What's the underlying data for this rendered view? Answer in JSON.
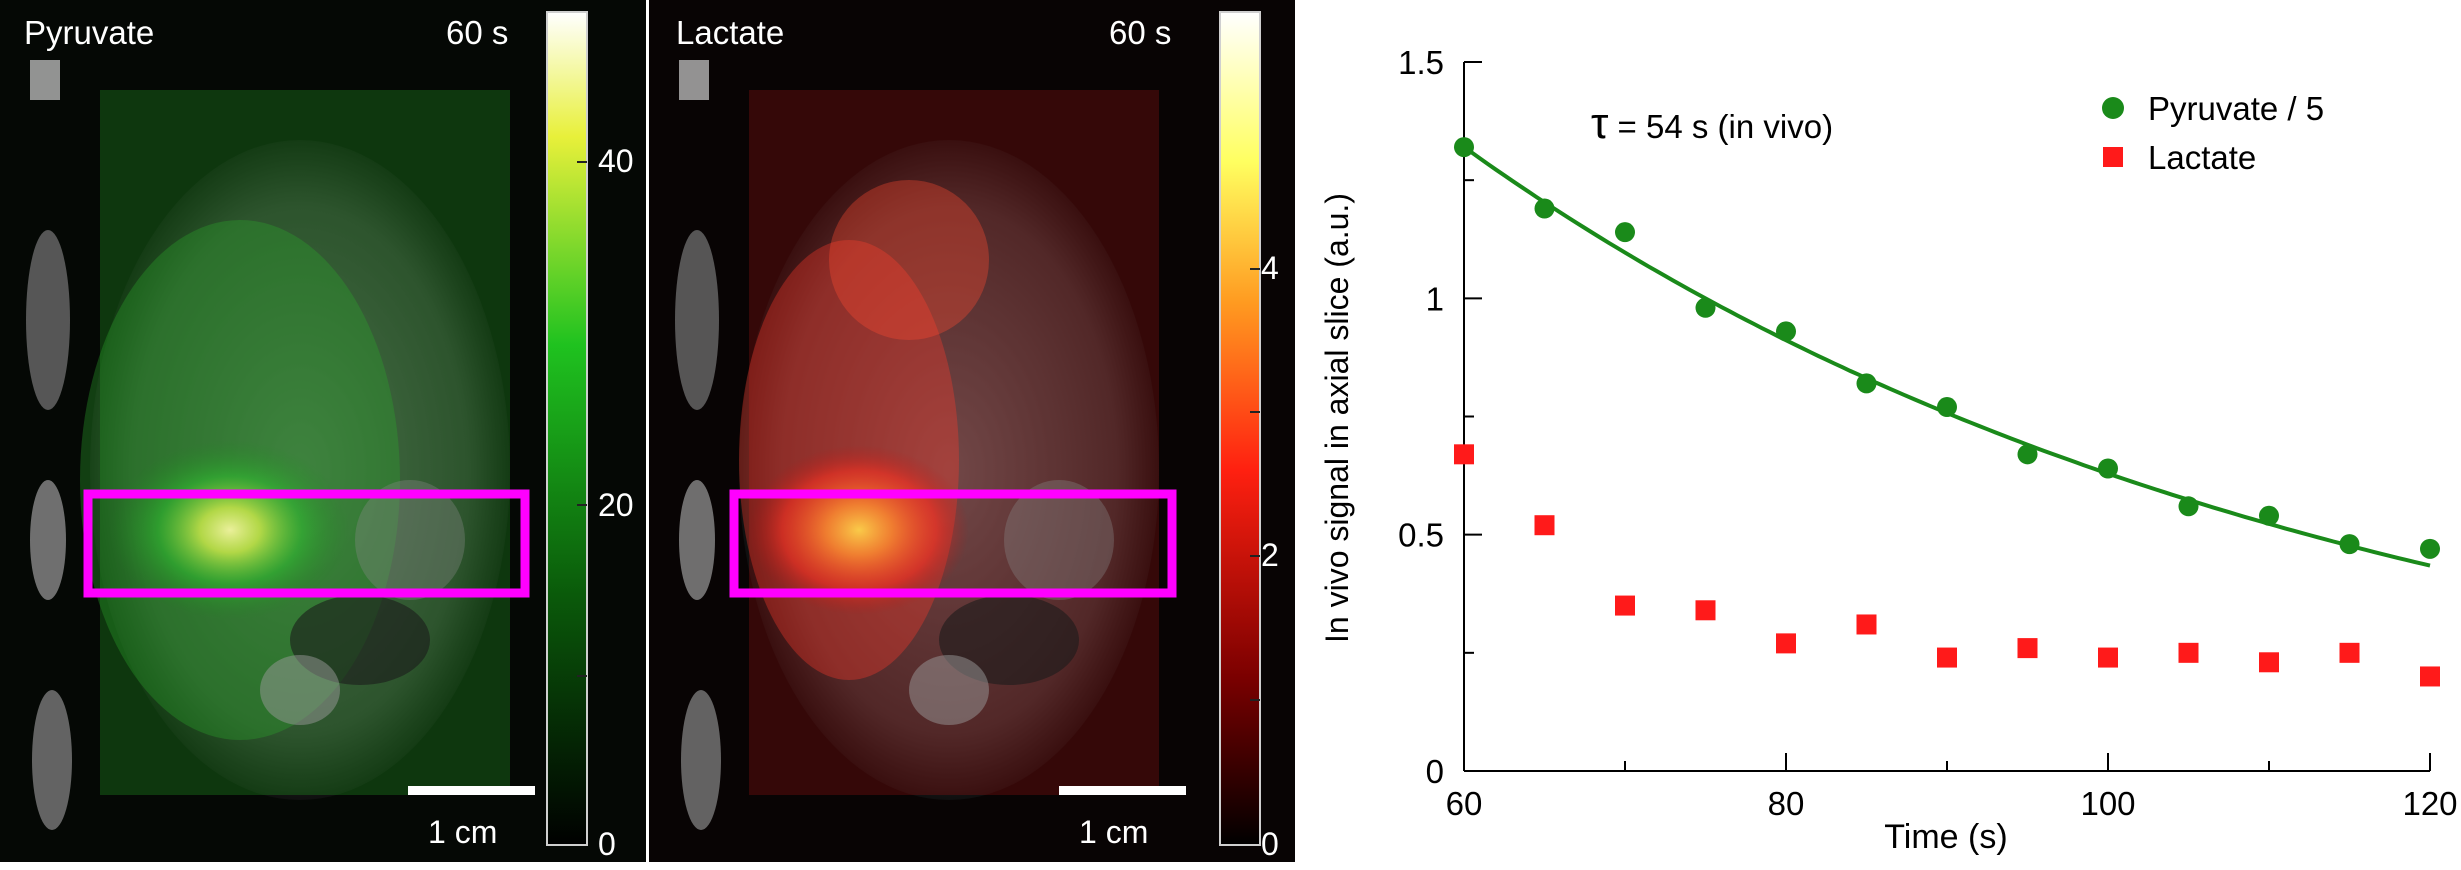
{
  "panels": {
    "pyruvate": {
      "label": "Pyruvate",
      "time": "60 s",
      "scalebar": "1 cm",
      "colorbar_ticks": [
        "40",
        "20",
        "0"
      ],
      "colormap": [
        "#000000",
        "#0a5a0a",
        "#1fc21f",
        "#e8f03a",
        "#ffffff"
      ],
      "roi_color": "#ff00ff"
    },
    "lactate": {
      "label": "Lactate",
      "time": "60 s",
      "scalebar": "1 cm",
      "colorbar_ticks": [
        "4",
        "2",
        "0"
      ],
      "colormap": [
        "#000000",
        "#7a0000",
        "#ff2010",
        "#ff9a20",
        "#ffff60",
        "#ffffff"
      ],
      "roi_color": "#ff00ff"
    }
  },
  "chart_data": {
    "type": "scatter",
    "xlabel": "Time (s)",
    "ylabel": "In vivo signal in axial slice (a.u.)",
    "annotation": "τ = 54 s (in vivo)",
    "xlim": [
      60,
      120
    ],
    "ylim": [
      0,
      1.5
    ],
    "xticks": [
      "60",
      "80",
      "100",
      "120"
    ],
    "yticks": [
      "0",
      "0.5",
      "1",
      "1.5"
    ],
    "legend_position": "top-right",
    "series": [
      {
        "name": "Pyruvate / 5",
        "marker": "circle",
        "color": "#1a8a1a",
        "x": [
          60,
          65,
          70,
          75,
          80,
          85,
          90,
          95,
          100,
          105,
          110,
          115,
          120
        ],
        "y": [
          1.32,
          1.19,
          1.14,
          0.98,
          0.93,
          0.82,
          0.77,
          0.67,
          0.64,
          0.56,
          0.54,
          0.48,
          0.47
        ]
      },
      {
        "name": "Lactate",
        "marker": "square",
        "color": "#ff1a1a",
        "x": [
          60,
          65,
          70,
          75,
          80,
          85,
          90,
          95,
          100,
          105,
          110,
          115,
          120
        ],
        "y": [
          0.67,
          0.52,
          0.35,
          0.34,
          0.27,
          0.31,
          0.24,
          0.26,
          0.24,
          0.25,
          0.23,
          0.25,
          0.2
        ]
      }
    ],
    "fit": {
      "series": "Pyruvate / 5",
      "type": "exponential decay",
      "tau": 54,
      "y0": 1.32,
      "x0": 60,
      "color": "#1a8a1a"
    }
  }
}
